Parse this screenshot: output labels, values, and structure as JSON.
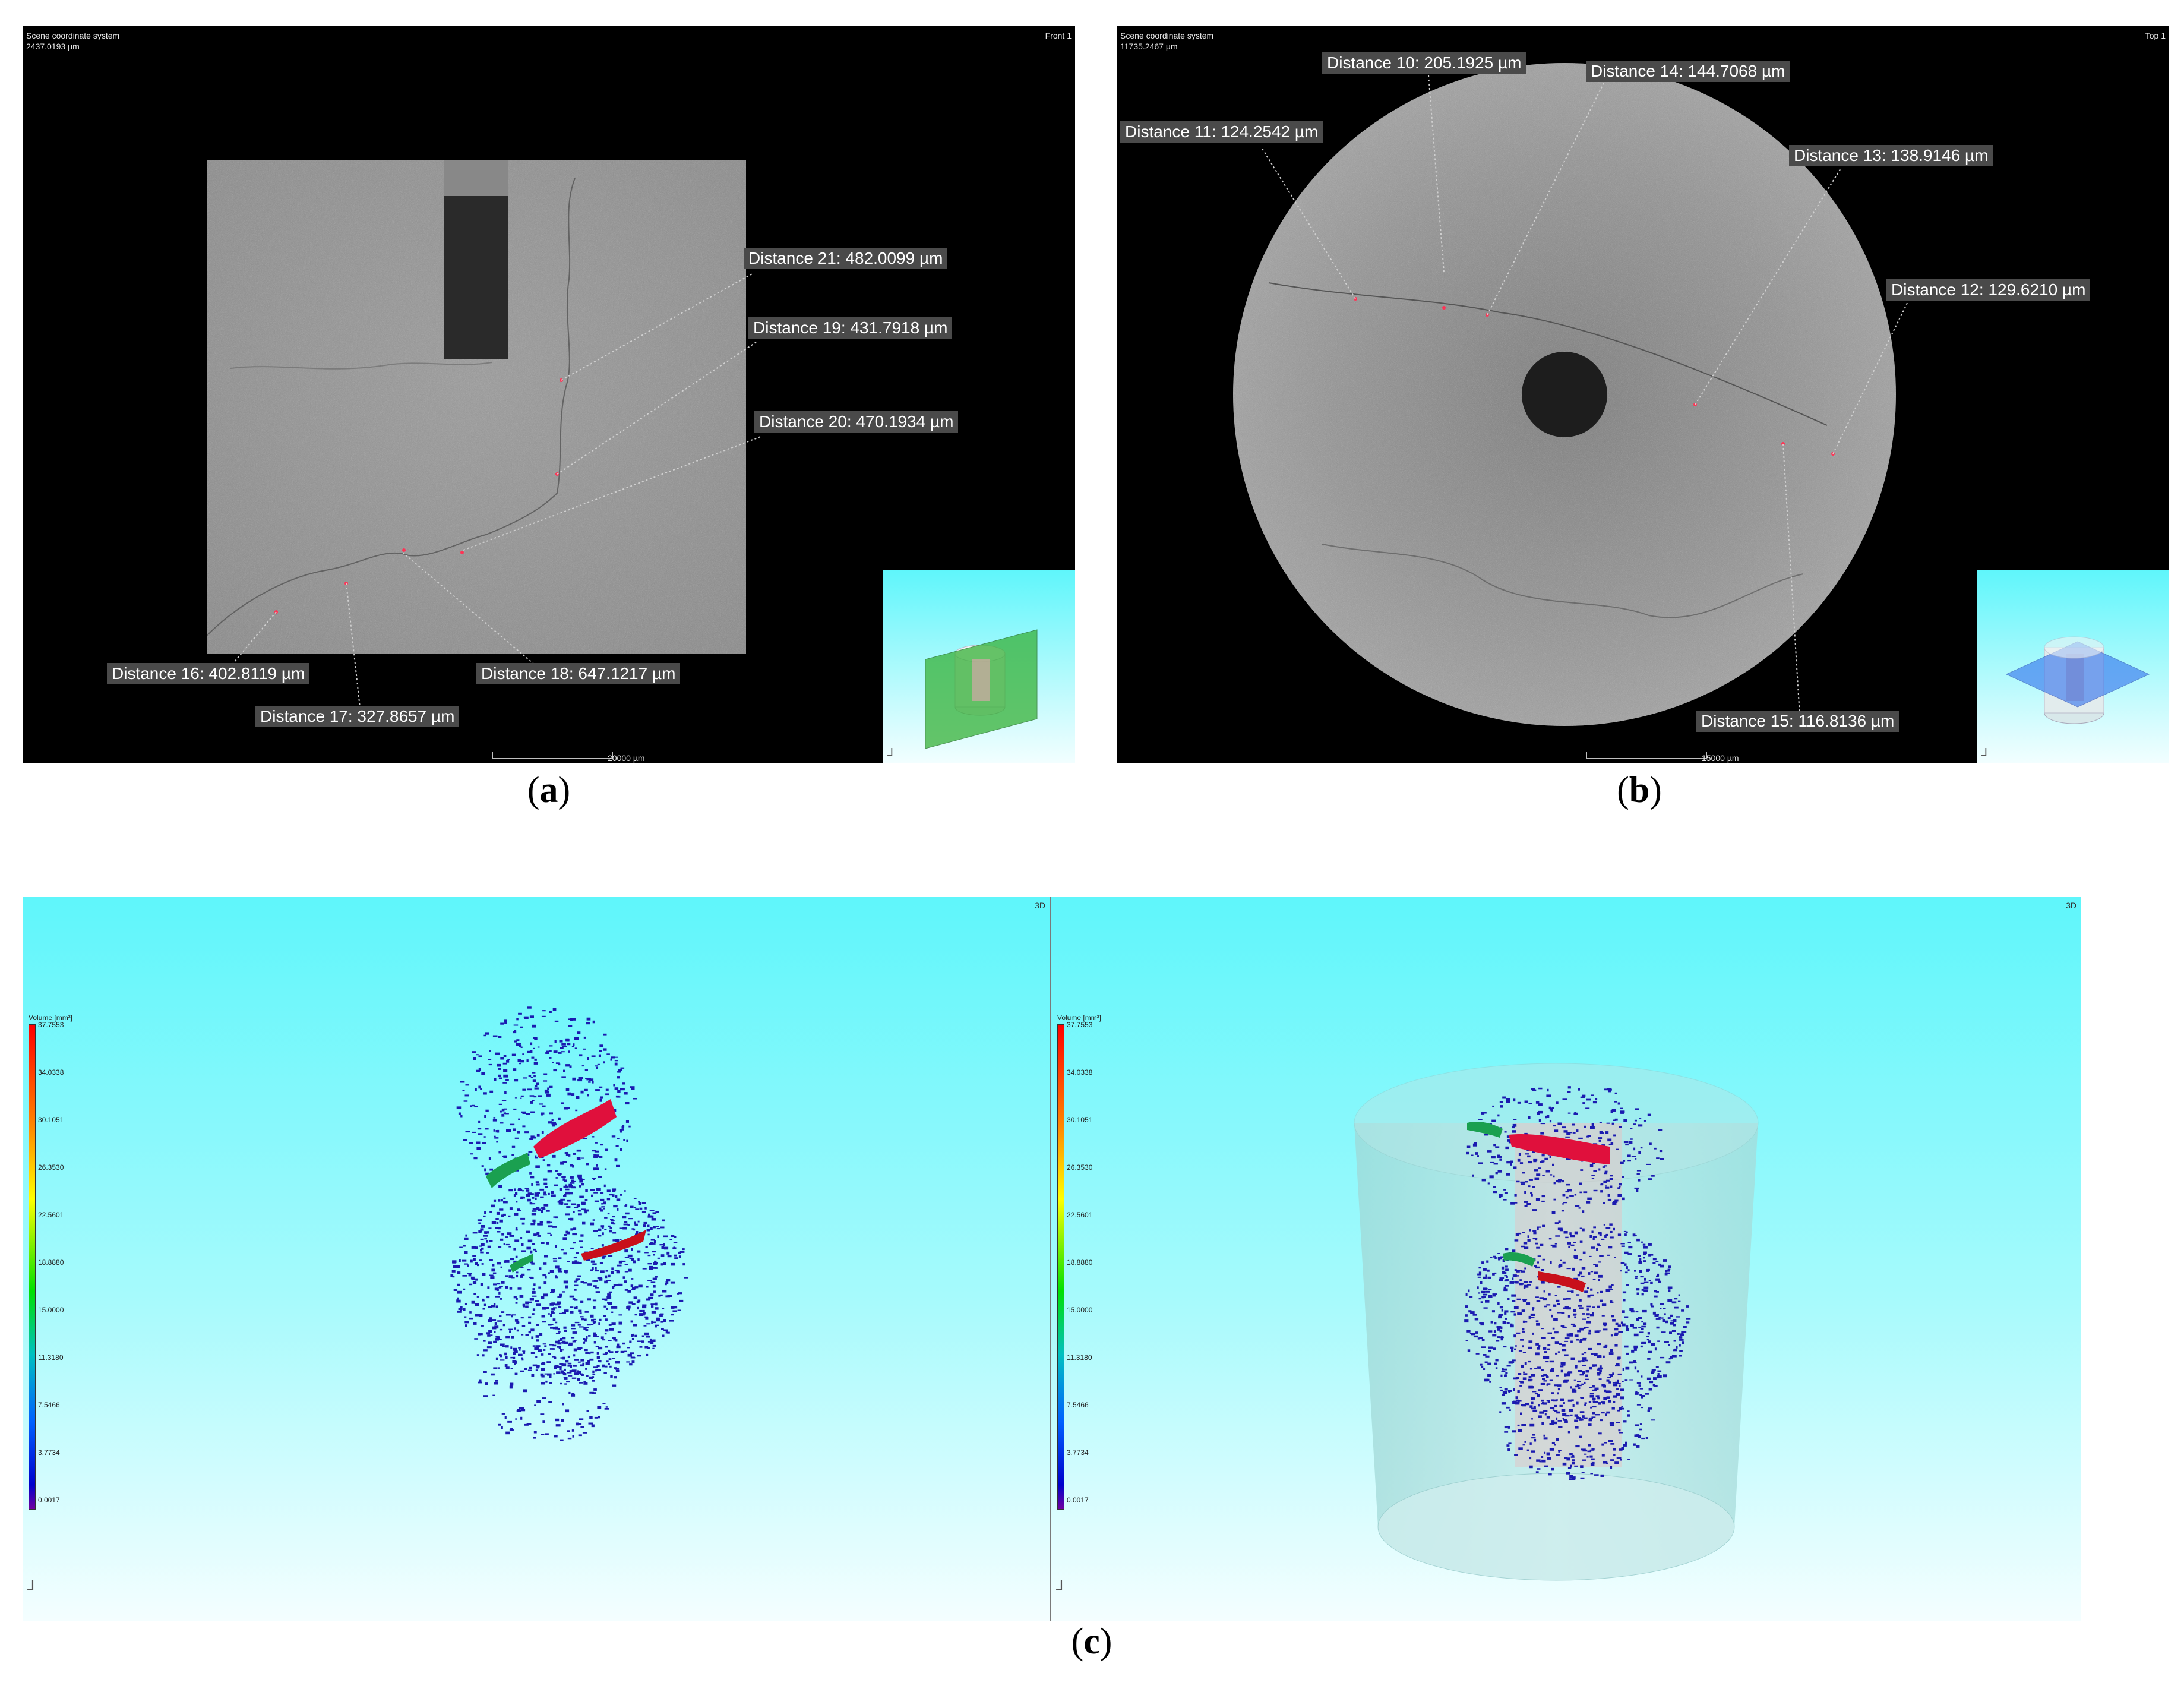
{
  "panel_a": {
    "overlay_title": "Scene coordinate system",
    "overlay_value": "2437.0193 µm",
    "view_name": "Front 1",
    "scale_label": "20000 µm",
    "distances": [
      "Distance 21: 482.0099 µm",
      "Distance 19: 431.7918 µm",
      "Distance 20: 470.1934 µm",
      "Distance 16: 402.8119 µm",
      "Distance 17: 327.8657 µm",
      "Distance 18: 647.1217 µm"
    ],
    "caption_letter": "a"
  },
  "panel_b": {
    "overlay_title": "Scene coordinate system",
    "overlay_value": "11735.2467 µm",
    "view_name": "Top 1",
    "scale_label": "15000 µm",
    "distances": [
      "Distance 10: 205.1925 µm",
      "Distance 14: 144.7068 µm",
      "Distance 11: 124.2542 µm",
      "Distance 13: 138.9146 µm",
      "Distance 12: 129.6210 µm",
      "Distance 15: 116.8136 µm"
    ],
    "caption_letter": "b"
  },
  "panel_c": {
    "view_tag": "3D",
    "legend_title": "Volume [mm³]",
    "legend_ticks": [
      "37.7553",
      "34.0338",
      "30.1051",
      "26.3530",
      "22.5601",
      "18.8880",
      "15.0000",
      "11.3180",
      "7.5466",
      "3.7734",
      "0.0017"
    ],
    "caption_letter": "c"
  },
  "colors": {
    "label_bg": "#4a4a4a",
    "sky_top": "#5ff6fb",
    "pore_blue": "#1b1bb0",
    "pore_red": "#e0103c",
    "pore_green": "#1aa050"
  }
}
